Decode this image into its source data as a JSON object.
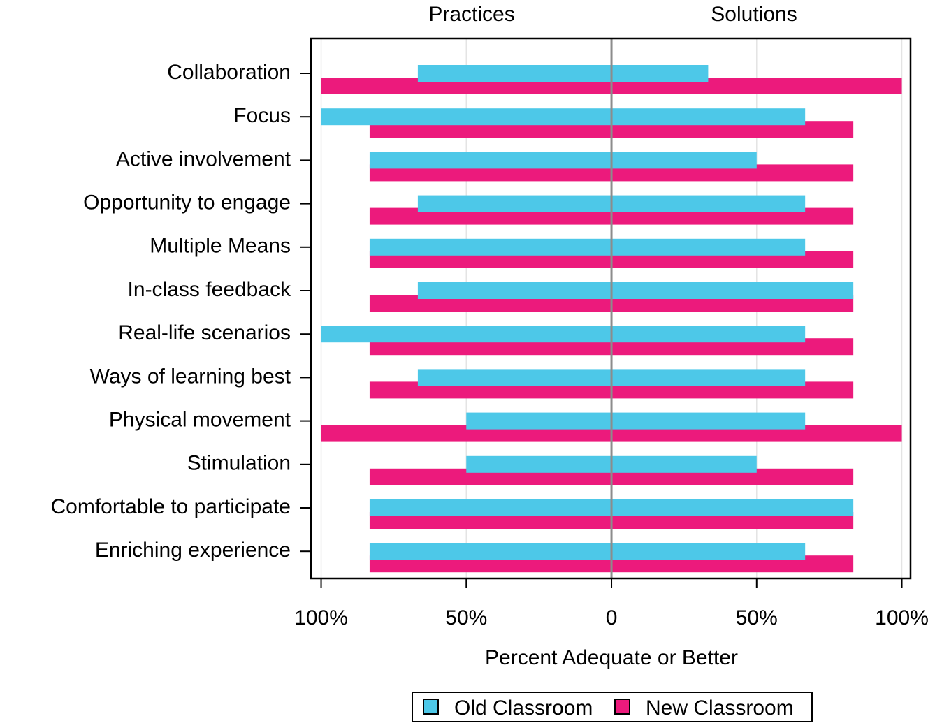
{
  "chart_data": {
    "type": "diverging-bar",
    "groups": [
      "Practices",
      "Solutions"
    ],
    "categories": [
      "Collaboration",
      "Focus",
      "Active involvement",
      "Opportunity to engage",
      "Multiple Means",
      "In-class feedback",
      "Real-life scenarios",
      "Ways of learning best",
      "Physical movement",
      "Stimulation",
      "Comfortable to participate",
      "Enriching experience"
    ],
    "series": [
      {
        "name": "Old Classroom",
        "color": "#4dc8e8",
        "values": [
          [
            -66.7,
            -100,
            -83.3,
            -66.7,
            -83.3,
            -66.7,
            -100,
            -66.7,
            -50,
            -50,
            -83.3,
            -83.3
          ],
          [
            33.3,
            66.7,
            50,
            66.7,
            66.7,
            83.3,
            66.7,
            66.7,
            66.7,
            50,
            83.3,
            66.7
          ]
        ]
      },
      {
        "name": "New Classroom",
        "color": "#ec1a7c",
        "values": [
          [
            -100,
            -83.3,
            -83.3,
            -83.3,
            -83.3,
            -83.3,
            -83.3,
            -83.3,
            -100,
            -83.3,
            -83.3,
            -83.3
          ],
          [
            100,
            83.3,
            83.3,
            83.3,
            83.3,
            83.3,
            83.3,
            83.3,
            100,
            83.3,
            83.3,
            83.3
          ]
        ]
      }
    ],
    "xlabel": "Percent Adequate or Better",
    "xlim": [
      -103.5,
      103
    ],
    "xticks": [
      {
        "value": -100,
        "label": "100%"
      },
      {
        "value": -50,
        "label": "50%"
      },
      0,
      {
        "value": 50,
        "label": "50%"
      },
      {
        "value": 100,
        "label": "100%"
      }
    ],
    "grid": true,
    "legend": "bottom"
  }
}
